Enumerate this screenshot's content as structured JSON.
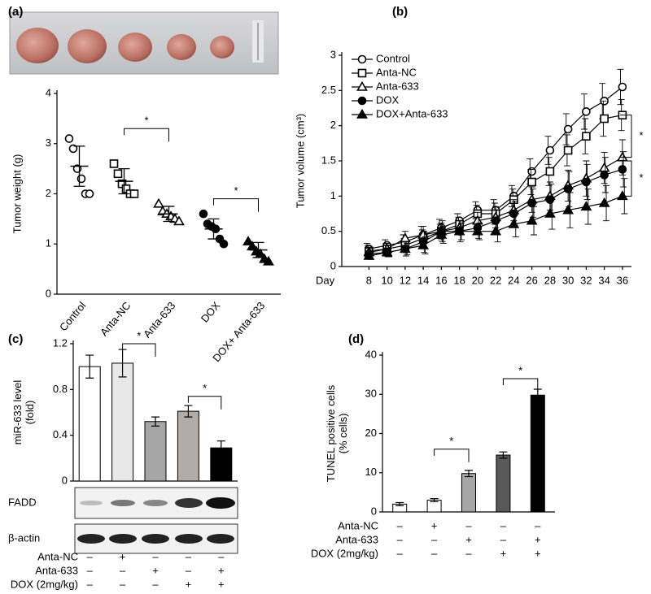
{
  "chart_data": [
    {
      "type": "dot",
      "panel": "(a)",
      "ylabel": "Tumor weight (g)",
      "categories": [
        "Control",
        "Anta-NC",
        "Anta-633",
        "DOX",
        "DOX+ Anta-633"
      ],
      "markers": [
        "circle-open",
        "square-open",
        "triangle-open",
        "circle",
        "triangle"
      ],
      "points": [
        [
          3.1,
          2.9,
          2.5,
          2.3,
          2.0,
          2.0
        ],
        [
          2.6,
          2.4,
          2.2,
          2.1,
          2.0,
          2.0
        ],
        [
          1.8,
          1.65,
          1.6,
          1.55,
          1.5,
          1.45
        ],
        [
          1.6,
          1.4,
          1.35,
          1.3,
          1.1,
          1.0
        ],
        [
          1.05,
          0.95,
          0.85,
          0.8,
          0.7,
          0.65
        ]
      ],
      "means": [
        2.55,
        2.25,
        1.6,
        1.3,
        0.88
      ],
      "errors": [
        0.4,
        0.25,
        0.15,
        0.2,
        0.15
      ],
      "ylim": [
        0,
        4
      ],
      "yticks": [
        0,
        1,
        2,
        3,
        4
      ],
      "annotations": [
        {
          "text": "*",
          "from": 1,
          "to": 2,
          "y": 3.3
        },
        {
          "text": "*",
          "from": 3,
          "to": 4,
          "y": 1.9
        }
      ]
    },
    {
      "type": "line",
      "panel": "(b)",
      "ylabel": "Tumor volume (cm³)",
      "xlabel": "Day",
      "x": [
        8,
        10,
        12,
        14,
        16,
        18,
        20,
        22,
        24,
        26,
        28,
        30,
        32,
        34,
        36
      ],
      "xlim": [
        5,
        37
      ],
      "ylim": [
        0,
        3
      ],
      "yticks": [
        0,
        0.5,
        1,
        1.5,
        2,
        2.5,
        3
      ],
      "series": [
        {
          "name": "Control",
          "marker": "circle-open",
          "values": [
            0.25,
            0.3,
            0.35,
            0.45,
            0.55,
            0.65,
            0.8,
            0.8,
            1.0,
            1.35,
            1.65,
            1.95,
            2.2,
            2.35,
            2.55
          ],
          "errors": [
            0.08,
            0.08,
            0.1,
            0.12,
            0.12,
            0.1,
            0.12,
            0.15,
            0.15,
            0.18,
            0.2,
            0.22,
            0.25,
            0.25,
            0.25
          ]
        },
        {
          "name": "Anta-NC",
          "marker": "square-open",
          "values": [
            0.22,
            0.25,
            0.3,
            0.4,
            0.5,
            0.6,
            0.75,
            0.75,
            0.95,
            1.2,
            1.35,
            1.65,
            1.85,
            2.1,
            2.15
          ],
          "errors": [
            0.08,
            0.08,
            0.1,
            0.12,
            0.1,
            0.1,
            0.12,
            0.15,
            0.15,
            0.18,
            0.2,
            0.22,
            0.25,
            0.25,
            0.22
          ]
        },
        {
          "name": "Anta-633",
          "marker": "triangle-open",
          "values": [
            0.2,
            0.25,
            0.4,
            0.45,
            0.5,
            0.55,
            0.65,
            0.7,
            0.8,
            0.95,
            1.0,
            1.15,
            1.25,
            1.4,
            1.55
          ],
          "errors": [
            0.06,
            0.08,
            0.1,
            0.12,
            0.12,
            0.1,
            0.12,
            0.15,
            0.15,
            0.18,
            0.2,
            0.22,
            0.25,
            0.22,
            0.25
          ]
        },
        {
          "name": "DOX",
          "marker": "circle",
          "values": [
            0.18,
            0.2,
            0.25,
            0.35,
            0.5,
            0.5,
            0.55,
            0.65,
            0.75,
            0.9,
            0.95,
            1.1,
            1.2,
            1.3,
            1.38
          ],
          "errors": [
            0.06,
            0.06,
            0.1,
            0.15,
            0.15,
            0.15,
            0.15,
            0.15,
            0.18,
            0.2,
            0.22,
            0.25,
            0.25,
            0.25,
            0.25
          ]
        },
        {
          "name": "DOX+Anta-633",
          "marker": "triangle",
          "values": [
            0.15,
            0.2,
            0.25,
            0.3,
            0.45,
            0.5,
            0.5,
            0.5,
            0.6,
            0.65,
            0.75,
            0.8,
            0.85,
            0.9,
            1.0
          ],
          "errors": [
            0.05,
            0.06,
            0.08,
            0.12,
            0.12,
            0.12,
            0.12,
            0.15,
            0.18,
            0.2,
            0.22,
            0.25,
            0.25,
            0.25,
            0.25
          ]
        }
      ],
      "annotations": [
        {
          "text": "*",
          "y1": 2.15,
          "y2": 1.55
        },
        {
          "text": "*",
          "y1": 1.5,
          "y2": 1.0
        }
      ]
    },
    {
      "type": "bar",
      "panel": "(c)",
      "ylabel": [
        "miR-633 level",
        "(fold)"
      ],
      "categories": [
        null,
        null,
        null,
        null,
        null
      ],
      "values": [
        1.0,
        1.03,
        0.52,
        0.61,
        0.29
      ],
      "errors": [
        0.1,
        0.12,
        0.04,
        0.05,
        0.06
      ],
      "colors": [
        "#ffffff",
        "#e8e8e8",
        "#a6a6a6",
        "#b3aaaa",
        "#000000"
      ],
      "ylim": [
        0,
        1.2
      ],
      "yticks": [
        0,
        0.4,
        0.8,
        1.2
      ],
      "annotations": [
        {
          "text": "*",
          "from": 1,
          "to": 2,
          "y": 1.2
        },
        {
          "text": "*",
          "from": 3,
          "to": 4,
          "y": 0.74
        }
      ],
      "blot_labels": [
        "FADD",
        "β-actin"
      ],
      "conditions": [
        {
          "label": "Anta-NC",
          "signs": [
            "–",
            "+",
            "–",
            "–",
            "–"
          ]
        },
        {
          "label": "Anta-633",
          "signs": [
            "–",
            "–",
            "+",
            "–",
            "+"
          ]
        },
        {
          "label": "DOX (2mg/kg)",
          "signs": [
            "–",
            "–",
            "–",
            "+",
            "+"
          ]
        }
      ]
    },
    {
      "type": "bar",
      "panel": "(d)",
      "ylabel": [
        "TUNEL positive cells",
        "(% cells)"
      ],
      "categories": [
        null,
        null,
        null,
        null,
        null
      ],
      "values": [
        2.0,
        3.0,
        9.8,
        14.5,
        29.8
      ],
      "errors": [
        0.4,
        0.4,
        0.8,
        0.8,
        1.5
      ],
      "colors": [
        "#ffffff",
        "#ffffff",
        "#a6a6a6",
        "#595959",
        "#000000"
      ],
      "ylim": [
        0,
        40
      ],
      "yticks": [
        0,
        10,
        20,
        30,
        40
      ],
      "annotations": [
        {
          "text": "*",
          "from": 1,
          "to": 2,
          "y": 16
        },
        {
          "text": "*",
          "from": 3,
          "to": 4,
          "y": 34
        }
      ],
      "conditions": [
        {
          "label": "Anta-NC",
          "signs": [
            "–",
            "+",
            "–",
            "–",
            "–"
          ]
        },
        {
          "label": "Anta-633",
          "signs": [
            "–",
            "–",
            "+",
            "–",
            "+"
          ]
        },
        {
          "label": "DOX (2mg/kg)",
          "signs": [
            "–",
            "–",
            "–",
            "+",
            "+"
          ]
        }
      ]
    }
  ]
}
